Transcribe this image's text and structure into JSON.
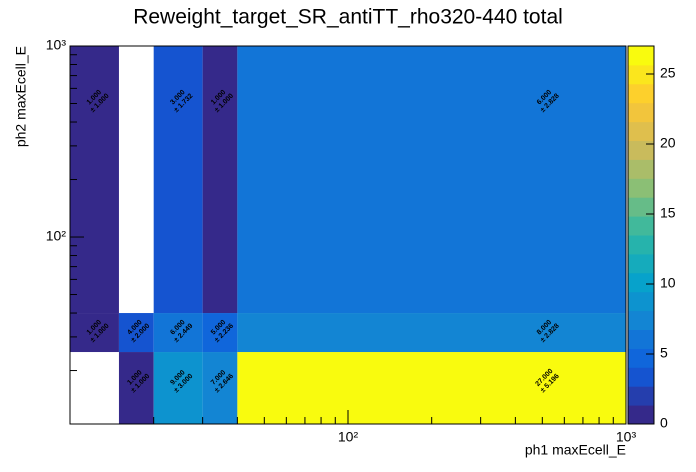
{
  "chart_data": {
    "type": "heatmap",
    "title": "Reweight_target_SR_antiTT_rho320-440 total",
    "x_label": "ph1 maxEcell_E",
    "y_label": "ph2 maxEcell_E",
    "x_log": true,
    "y_log": true,
    "xbins": [
      10,
      15,
      20,
      30,
      40,
      1000
    ],
    "ybins": [
      10.5,
      25,
      40,
      1000
    ],
    "xlim": [
      10,
      1000
    ],
    "ylim": [
      10.5,
      1000
    ],
    "xticks": [
      {
        "value": 100,
        "label": "10²"
      },
      {
        "value": 1000,
        "label": "10³"
      }
    ],
    "yticks": [
      {
        "value": 100,
        "label": "10²"
      },
      {
        "value": 1000,
        "label": "10³"
      }
    ],
    "xminorticks": [
      20,
      30,
      40,
      50,
      60,
      70,
      80,
      90,
      200,
      300,
      400,
      500,
      600,
      700,
      800,
      900
    ],
    "yminorticks": [
      20,
      30,
      40,
      50,
      60,
      70,
      80,
      90,
      200,
      300,
      400,
      500,
      600,
      700,
      800,
      900
    ],
    "values": [
      [
        null,
        1,
        9,
        7,
        27
      ],
      [
        1,
        4,
        6,
        5,
        8
      ],
      [
        1,
        null,
        3,
        1,
        6
      ]
    ],
    "value_labels": [
      [
        null,
        "1.000",
        "9.000",
        "7.000",
        "27.000"
      ],
      [
        "1.000",
        "4.000",
        "6.000",
        "5.000",
        "8.000"
      ],
      [
        "1.000",
        null,
        "3.000",
        "1.000",
        "6.000"
      ]
    ],
    "errors": [
      [
        null,
        1,
        3,
        2.646,
        5.196
      ],
      [
        1,
        2,
        2.449,
        2.236,
        2.828
      ],
      [
        1,
        null,
        1.732,
        1,
        2.828
      ]
    ],
    "error_labels": [
      [
        null,
        "± 1.000",
        "± 3.000",
        "± 2.646",
        "± 5.196"
      ],
      [
        "± 1.000",
        "± 2.000",
        "± 2.449",
        "± 2.236",
        "± 2.828"
      ],
      [
        "± 1.000",
        null,
        "± 1.732",
        "± 1.000",
        "± 2.828"
      ]
    ],
    "zlim": [
      0,
      27
    ],
    "zticks": [
      0,
      5,
      10,
      15,
      20,
      25
    ],
    "contours": 20,
    "palette": [
      "#35298a",
      "#0f5cdd",
      "#1481d4",
      "#06a4ca",
      "#2eb7a4",
      "#87bf77",
      "#d1bb59",
      "#fec832",
      "#f9fb0e"
    ]
  }
}
